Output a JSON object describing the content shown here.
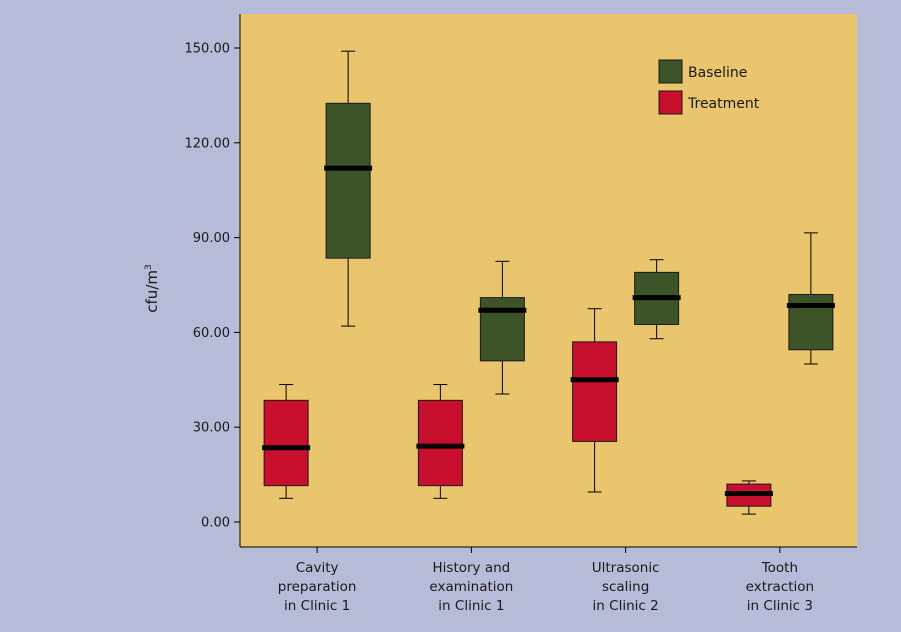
{
  "colors": {
    "page_background": "#b6bcd8",
    "plot_background": "#e9c66e",
    "baseline": "#3d5328",
    "treatment": "#c8102e",
    "median": "#000000"
  },
  "chart_data": {
    "type": "box",
    "title": "",
    "xlabel": "",
    "ylabel": "cfu/m",
    "ylabel_superscript": "3",
    "ylim": [
      -8,
      155
    ],
    "yticks": [
      0,
      30,
      60,
      90,
      120,
      150
    ],
    "ytick_labels": [
      "0.00",
      "30.00",
      "60.00",
      "90.00",
      "120.00",
      "150.00"
    ],
    "grid": false,
    "legend_position": "top-right",
    "categories": [
      [
        "Cavity",
        "preparation",
        "in Clinic 1"
      ],
      [
        "History and",
        "examination",
        "in Clinic 1"
      ],
      [
        "Ultrasonic",
        "scaling",
        "in Clinic 2"
      ],
      [
        "Tooth",
        "extraction",
        "in Clinic 3"
      ]
    ],
    "series": [
      {
        "name": "Baseline",
        "color": "#3d5328",
        "boxes": [
          {
            "min": 62,
            "q1": 83.5,
            "median": 112,
            "q3": 132.5,
            "max": 149
          },
          {
            "min": 40.5,
            "q1": 51,
            "median": 67,
            "q3": 71,
            "max": 82.5
          },
          {
            "min": 58,
            "q1": 62.5,
            "median": 71,
            "q3": 79,
            "max": 83
          },
          {
            "min": 50,
            "q1": 54.5,
            "median": 68.5,
            "q3": 72,
            "max": 91.5
          }
        ]
      },
      {
        "name": "Treatment",
        "color": "#c8102e",
        "boxes": [
          {
            "min": 7.5,
            "q1": 11.5,
            "median": 23.5,
            "q3": 38.5,
            "max": 43.5
          },
          {
            "min": 7.5,
            "q1": 11.5,
            "median": 24,
            "q3": 38.5,
            "max": 43.5
          },
          {
            "min": 9.5,
            "q1": 25.5,
            "median": 45,
            "q3": 57,
            "max": 67.5
          },
          {
            "min": 2.5,
            "q1": 5,
            "median": 9,
            "q3": 12,
            "max": 13
          }
        ]
      }
    ]
  }
}
